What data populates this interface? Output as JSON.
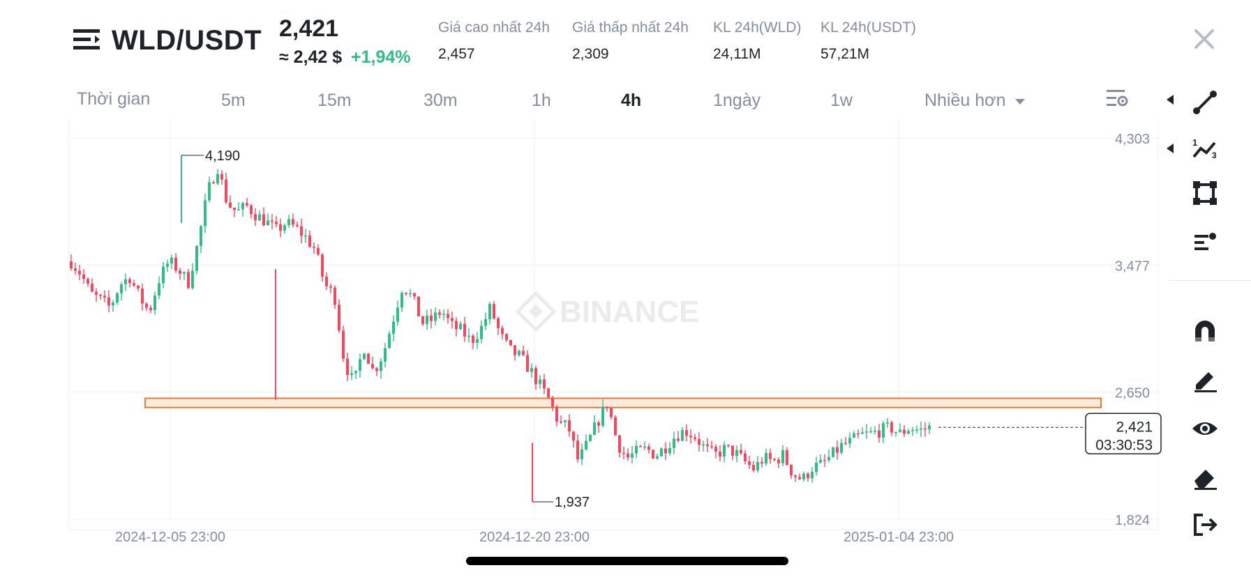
{
  "header": {
    "pair": "WLD/USDT",
    "last_price": "2,421",
    "usd_approx": "≈ 2,42 $",
    "change_pct": "+1,94%",
    "stats": [
      {
        "label": "Giá cao nhất 24h",
        "value": "2,457"
      },
      {
        "label": "Giá thấp nhất 24h",
        "value": "2,309"
      },
      {
        "label": "KL 24h(WLD)",
        "value": "24,11M"
      },
      {
        "label": "KL 24h(USDT)",
        "value": "57,21M"
      }
    ]
  },
  "timebar": {
    "label": "Thời gian",
    "intervals": [
      "5m",
      "15m",
      "30m",
      "1h",
      "4h",
      "1ngày",
      "1w"
    ],
    "active": "4h",
    "more": "Nhiều hơn"
  },
  "colors": {
    "up": "#2ebd85",
    "down": "#f6465d",
    "zone_fill": "#fde2cf",
    "zone_stroke": "#f0782f",
    "grid": "#eef0f2",
    "axis_text": "#848e9c",
    "watermark": "#e9ebed"
  },
  "toolbar": {
    "icons": [
      "trend-line-icon",
      "fibonacci-icon",
      "rectangle-shape-icon",
      "text-annotation-icon",
      "magnet-icon",
      "pencil-icon",
      "eye-icon",
      "eraser-icon",
      "exit-icon"
    ]
  },
  "chart_data": {
    "type": "candlestick",
    "pair": "WLD/USDT",
    "interval": "4h",
    "watermark": "BINANCE",
    "y_ticks": [
      "4,303",
      "3,477",
      "2,650",
      "1,824"
    ],
    "y_tick_values": [
      4.303,
      3.477,
      2.65,
      1.824
    ],
    "ylim": [
      1.824,
      4.303
    ],
    "x_ticks": [
      "2024-12-05 23:00",
      "2024-12-20 23:00",
      "2025-01-04 23:00"
    ],
    "annotations": {
      "high_label": "4,190",
      "high_value": 4.19,
      "low_label": "1,937",
      "low_value": 1.937
    },
    "current_price_label": "2,421",
    "current_price_value": 2.421,
    "countdown": "03:30:53",
    "support_zone": [
      2.55,
      2.61
    ],
    "close_trajectory": [
      3.5,
      3.42,
      3.29,
      3.25,
      3.2,
      3.35,
      3.4,
      3.27,
      3.17,
      3.38,
      3.5,
      3.45,
      3.36,
      3.62,
      3.95,
      4.12,
      3.88,
      3.82,
      3.86,
      3.8,
      3.76,
      3.7,
      3.75,
      3.72,
      3.66,
      3.58,
      3.35,
      3.28,
      2.85,
      2.7,
      2.95,
      2.78,
      2.9,
      3.12,
      3.35,
      3.26,
      3.1,
      3.12,
      3.18,
      3.08,
      3.05,
      2.98,
      3.06,
      3.2,
      3.02,
      2.92,
      2.88,
      2.8,
      2.7,
      2.6,
      2.45,
      2.42,
      2.2,
      2.32,
      2.46,
      2.58,
      2.32,
      2.22,
      2.26,
      2.28,
      2.24,
      2.3,
      2.37,
      2.4,
      2.36,
      2.28,
      2.24,
      2.28,
      2.26,
      2.2,
      2.15,
      2.22,
      2.2,
      2.24,
      2.12,
      2.08,
      2.16,
      2.18,
      2.24,
      2.3,
      2.33,
      2.37,
      2.38,
      2.4,
      2.42,
      2.38,
      2.42,
      2.4,
      2.42
    ]
  }
}
